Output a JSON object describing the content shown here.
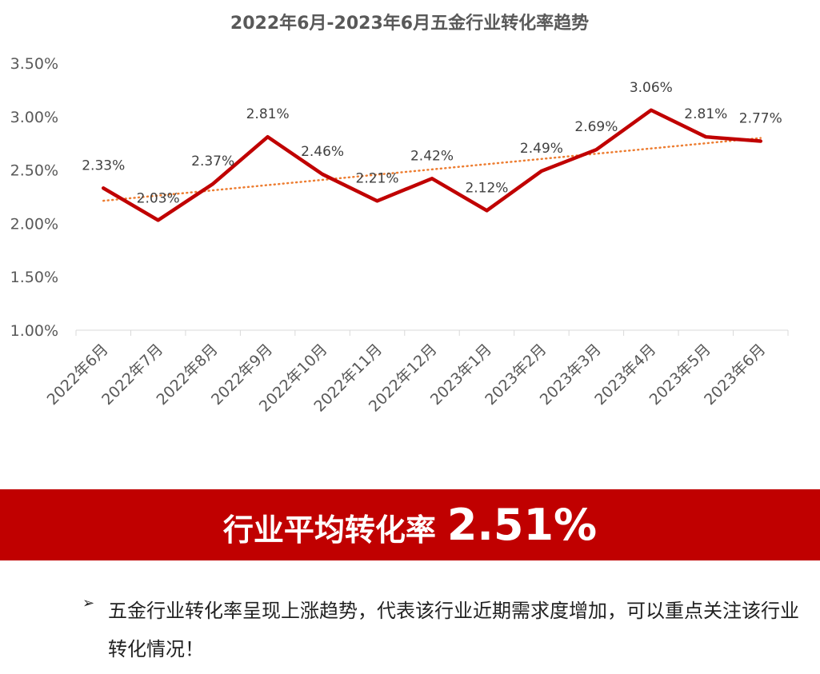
{
  "chart_data": {
    "type": "line",
    "title": "2022年6月-2023年6月五金行业转化率趋势",
    "categories": [
      "2022年6月",
      "2022年7月",
      "2022年8月",
      "2022年9月",
      "2022年10月",
      "2022年11月",
      "2022年12月",
      "2023年1月",
      "2023年2月",
      "2023年3月",
      "2023年4月",
      "2023年5月",
      "2023年6月"
    ],
    "series": [
      {
        "values": [
          2.33,
          2.03,
          2.37,
          2.81,
          2.46,
          2.21,
          2.42,
          2.12,
          2.49,
          2.69,
          3.06,
          2.81,
          2.77
        ],
        "labels": [
          "2.33%",
          "2.03%",
          "2.37%",
          "2.81%",
          "2.46%",
          "2.21%",
          "2.42%",
          "2.12%",
          "2.49%",
          "2.69%",
          "3.06%",
          "2.81%",
          "2.77%"
        ],
        "color": "#c00000"
      }
    ],
    "trendline": {
      "type": "linear",
      "style": "dotted",
      "color": "#ed7d31"
    },
    "ylim": [
      1.0,
      3.5
    ],
    "yticks": [
      "1.00%",
      "1.50%",
      "2.00%",
      "2.50%",
      "3.00%",
      "3.50%"
    ],
    "xlabel": "",
    "ylabel": "",
    "grid": false,
    "legend": "none"
  },
  "banner": {
    "label": "行业平均转化率",
    "value": "2.51%",
    "color": "#c00000"
  },
  "note": {
    "bullet": "➢",
    "text": "五金行业转化率呈现上涨趋势，代表该行业近期需求度增加，可以重点关注该行业转化情况！"
  }
}
